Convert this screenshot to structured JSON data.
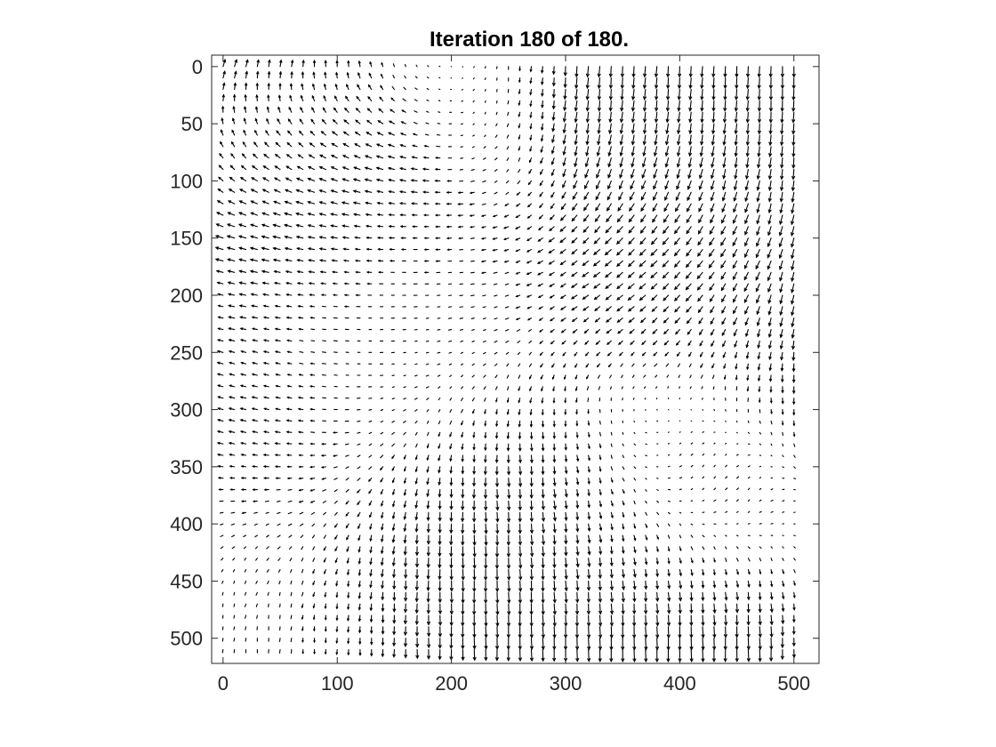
{
  "window": {
    "title": "Iteration 180 of 180."
  },
  "chart_data": {
    "type": "quiver",
    "title": "Iteration 180 of 180.",
    "xlabel": "",
    "ylabel": "",
    "xlim": [
      -10,
      522
    ],
    "ylim": [
      522,
      -10
    ],
    "y_axis_direction": "reversed",
    "x_ticks": [
      0,
      100,
      200,
      300,
      400,
      500
    ],
    "y_ticks": [
      0,
      50,
      100,
      150,
      200,
      250,
      300,
      350,
      400,
      450,
      500
    ],
    "x_tick_labels": [
      "0",
      "100",
      "200",
      "300",
      "400",
      "500"
    ],
    "y_tick_labels": [
      "0",
      "50",
      "100",
      "150",
      "200",
      "250",
      "300",
      "350",
      "400",
      "450",
      "500"
    ],
    "grid": false,
    "box": true,
    "arrow_color": "#000000",
    "field": {
      "x_start": 0,
      "y_start": 0,
      "step": 10,
      "count_x": 52,
      "count_y": 52,
      "description_of_regions": [
        {
          "center": [
            20,
            0
          ],
          "vector": [
            0.6,
            -1.0
          ],
          "strength": 0.8
        },
        {
          "center": [
            60,
            100
          ],
          "vector": [
            -1.0,
            -0.15
          ],
          "strength": 0.9
        },
        {
          "center": [
            180,
            210
          ],
          "vector": [
            -1.0,
            0.1
          ],
          "strength": 0.4
        },
        {
          "center": [
            380,
            20
          ],
          "vector": [
            -0.05,
            1.0
          ],
          "strength": 1.0
        },
        {
          "center": [
            500,
            60
          ],
          "vector": [
            0.0,
            1.0
          ],
          "strength": 1.0
        },
        {
          "center": [
            400,
            180
          ],
          "vector": [
            -0.8,
            0.5
          ],
          "strength": 0.9
        },
        {
          "center": [
            500,
            260
          ],
          "vector": [
            0.0,
            1.0
          ],
          "strength": 1.1
        },
        {
          "center": [
            420,
            350
          ],
          "vector": [
            0.3,
            -1.0
          ],
          "strength": 0.8
        },
        {
          "center": [
            200,
            420
          ],
          "vector": [
            0.0,
            1.0
          ],
          "strength": 1.1
        },
        {
          "center": [
            300,
            380
          ],
          "vector": [
            0.1,
            1.0
          ],
          "strength": 0.9
        },
        {
          "center": [
            400,
            505
          ],
          "vector": [
            0.0,
            1.0
          ],
          "strength": 1.3
        },
        {
          "center": [
            60,
            330
          ],
          "vector": [
            -1.0,
            -0.3
          ],
          "strength": 0.6
        },
        {
          "center": [
            50,
            470
          ],
          "vector": [
            0.0,
            1.0
          ],
          "strength": 0.3
        },
        {
          "center": [
            150,
            260
          ],
          "vector": [
            0.0,
            0.0
          ],
          "strength": 0.0
        }
      ]
    }
  }
}
